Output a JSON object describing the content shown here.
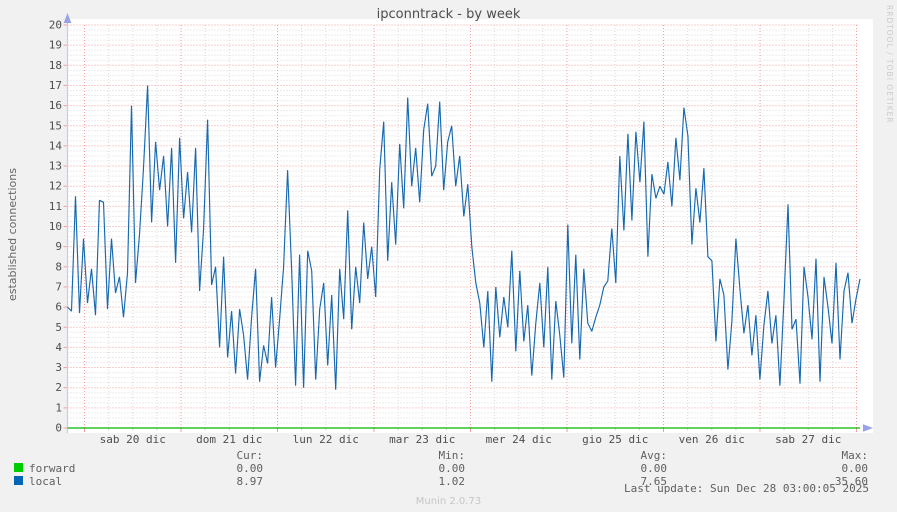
{
  "title": "ipconntrack - by week",
  "y_axis_label": "established connections",
  "watermark": "RRDTOOL / TOBI OETIKER",
  "footer": {
    "last_update": "Last update: Sun Dec 28 03:00:05 2025",
    "version": "Munin 2.0.73"
  },
  "colors": {
    "page_bg": "#f1f1f1",
    "plot_bg": "#ffffff",
    "grid_major": "#f2a0a0",
    "grid_minor": "#dadada",
    "axis_line": "#c3cdf2",
    "axis_arrow": "#97a3e6",
    "tick_text": "#4d4d4d",
    "forward_swatch": "#00cc00",
    "local_swatch": "#0066b3",
    "forward_line": "#00b800",
    "local_line": "#1668b0"
  },
  "stats_table": {
    "headers": [
      "Cur:",
      "Min:",
      "Avg:",
      "Max:"
    ],
    "rows": [
      {
        "name": "forward",
        "swatch_color": "#00cc00",
        "values": [
          "0.00",
          "0.00",
          "0.00",
          "0.00"
        ]
      },
      {
        "name": "local",
        "swatch_color": "#0066b3",
        "values": [
          "8.97",
          "1.02",
          "7.65",
          "35.60"
        ]
      }
    ]
  },
  "chart_data": {
    "type": "line",
    "title": "ipconntrack - by week",
    "ylabel": "established connections",
    "xlabel": "",
    "ylim": [
      0,
      20
    ],
    "y_ticks": [
      0,
      1,
      2,
      3,
      4,
      5,
      6,
      7,
      8,
      9,
      10,
      11,
      12,
      13,
      14,
      15,
      16,
      17,
      18,
      19,
      20
    ],
    "x_labels": [
      "sab 20 dic",
      "dom 21 dic",
      "lun 22 dic",
      "mar 23 dic",
      "mer 24 dic",
      "gio 25 dic",
      "ven 26 dic",
      "sab 27 dic"
    ],
    "grid": true,
    "legend_position": "bottom-left",
    "series": [
      {
        "name": "forward",
        "color": "#00cc00",
        "values": [
          0,
          0
        ]
      },
      {
        "name": "local",
        "color": "#0066b3",
        "values": [
          6.0,
          5.8,
          11.5,
          5.7,
          9.4,
          6.2,
          7.9,
          5.6,
          11.3,
          11.2,
          5.9,
          9.4,
          6.7,
          7.5,
          5.5,
          7.7,
          16.0,
          7.2,
          9.6,
          12.9,
          17.0,
          10.2,
          14.2,
          11.8,
          13.5,
          10.0,
          13.9,
          8.2,
          14.4,
          10.4,
          12.7,
          9.7,
          13.9,
          6.8,
          9.9,
          15.3,
          7.1,
          8.0,
          4.0,
          8.5,
          3.5,
          5.8,
          2.7,
          5.9,
          4.6,
          2.4,
          5.5,
          7.9,
          2.3,
          4.1,
          3.2,
          6.5,
          3.0,
          5.4,
          8.0,
          12.8,
          7.9,
          2.1,
          8.6,
          2.0,
          8.8,
          7.8,
          2.4,
          5.9,
          7.2,
          3.1,
          6.6,
          1.9,
          7.9,
          5.4,
          10.8,
          4.9,
          8.0,
          6.2,
          10.2,
          7.4,
          9.0,
          6.5,
          12.8,
          15.2,
          8.3,
          12.2,
          9.1,
          14.1,
          10.9,
          16.4,
          12.0,
          13.9,
          11.2,
          14.8,
          16.1,
          12.5,
          13.0,
          16.2,
          11.8,
          14.2,
          15.0,
          12.0,
          13.5,
          10.5,
          12.1,
          9.0,
          7.2,
          6.2,
          4.0,
          6.8,
          2.3,
          7.0,
          4.5,
          6.5,
          5.0,
          8.8,
          3.8,
          7.8,
          4.3,
          6.1,
          2.6,
          5.2,
          7.2,
          4.0,
          8.0,
          2.4,
          6.3,
          4.6,
          2.5,
          10.1,
          4.2,
          8.6,
          3.4,
          7.9,
          5.2,
          4.8,
          5.5,
          6.1,
          7.0,
          7.3,
          9.9,
          7.2,
          13.5,
          9.8,
          14.6,
          10.3,
          14.7,
          12.2,
          15.2,
          8.5,
          12.6,
          11.4,
          12.0,
          11.6,
          13.2,
          11.0,
          14.4,
          12.3,
          15.9,
          14.5,
          9.1,
          11.9,
          10.2,
          12.9,
          8.5,
          8.3,
          4.3,
          7.4,
          6.6,
          2.9,
          5.3,
          9.4,
          6.9,
          4.7,
          6.1,
          3.6,
          5.6,
          2.4,
          5.1,
          6.8,
          4.2,
          5.6,
          2.1,
          6.4,
          11.1,
          4.9,
          5.4,
          2.2,
          8.0,
          6.5,
          4.4,
          8.4,
          2.3,
          7.5,
          6.0,
          4.2,
          8.2,
          3.4,
          6.8,
          7.7,
          5.2,
          6.4,
          7.4
        ]
      }
    ],
    "stats": {
      "forward": {
        "cur": 0.0,
        "min": 0.0,
        "avg": 0.0,
        "max": 0.0
      },
      "local": {
        "cur": 8.97,
        "min": 1.02,
        "avg": 7.65,
        "max": 35.6
      }
    }
  }
}
